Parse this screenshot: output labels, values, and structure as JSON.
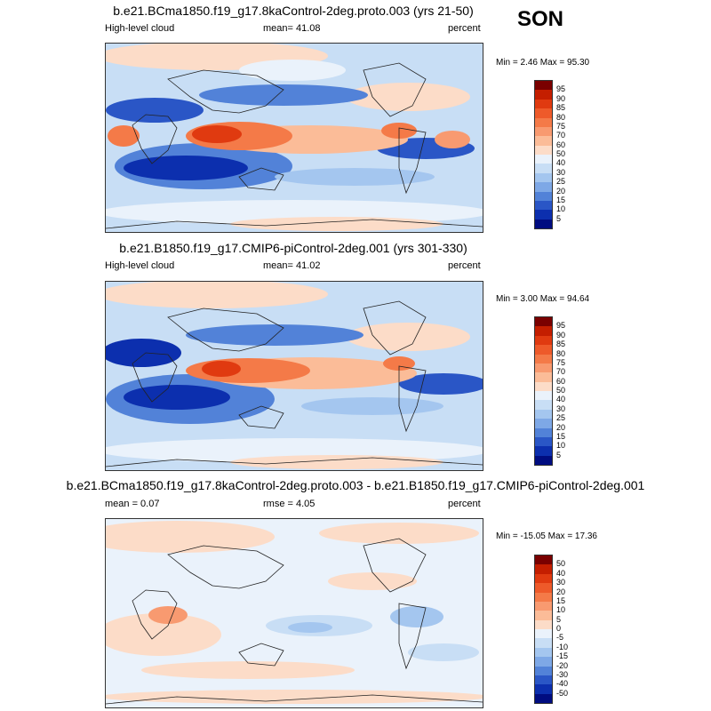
{
  "season": "SON",
  "panels": [
    {
      "title": "b.e21.BCma1850.f19_g17.8kaControl-2deg.proto.003 (yrs 21-50)",
      "left_label": "High-level cloud",
      "center_label": "mean=  41.08",
      "right_label": "percent",
      "minmax": "Min =  2.46 Max =  95.30",
      "field": "absolute"
    },
    {
      "title": "b.e21.B1850.f19_g17.CMIP6-piControl-2deg.001 (yrs 301-330)",
      "left_label": "High-level cloud",
      "center_label": "mean=  41.02",
      "right_label": "percent",
      "minmax": "Min =  3.00 Max =  94.64",
      "field": "absolute"
    },
    {
      "title": "b.e21.BCma1850.f19_g17.8kaControl-2deg.proto.003 - b.e21.B1850.f19_g17.CMIP6-piControl-2deg.001",
      "left_label": "mean =   0.07",
      "center_label": "rmse =   4.05",
      "right_label": "percent",
      "minmax": "Min = -15.05 Max =  17.36",
      "field": "difference"
    }
  ],
  "colorbars": {
    "absolute": {
      "labels": [
        "95",
        "90",
        "85",
        "80",
        "75",
        "70",
        "60",
        "50",
        "40",
        "30",
        "25",
        "20",
        "15",
        "10",
        "5"
      ],
      "colors": [
        "#7a0000",
        "#c41e00",
        "#e03a10",
        "#ee5a2a",
        "#f47a48",
        "#f89a70",
        "#fbbc98",
        "#fcdcc8",
        "#eaf2fb",
        "#c8def5",
        "#a4c6ef",
        "#7ea8e6",
        "#5282d8",
        "#2a56c6",
        "#0c2fae",
        "#000c80"
      ]
    },
    "difference": {
      "labels": [
        "50",
        "40",
        "30",
        "20",
        "15",
        "10",
        "5",
        "0",
        "-5",
        "-10",
        "-15",
        "-20",
        "-30",
        "-40",
        "-50"
      ],
      "colors": [
        "#7a0000",
        "#c41e00",
        "#e03a10",
        "#ee5a2a",
        "#f47a48",
        "#f89a70",
        "#fbbc98",
        "#fcdcc8",
        "#eaf2fb",
        "#c8def5",
        "#a4c6ef",
        "#7ea8e6",
        "#5282d8",
        "#2a56c6",
        "#0c2fae",
        "#000c80"
      ]
    }
  }
}
